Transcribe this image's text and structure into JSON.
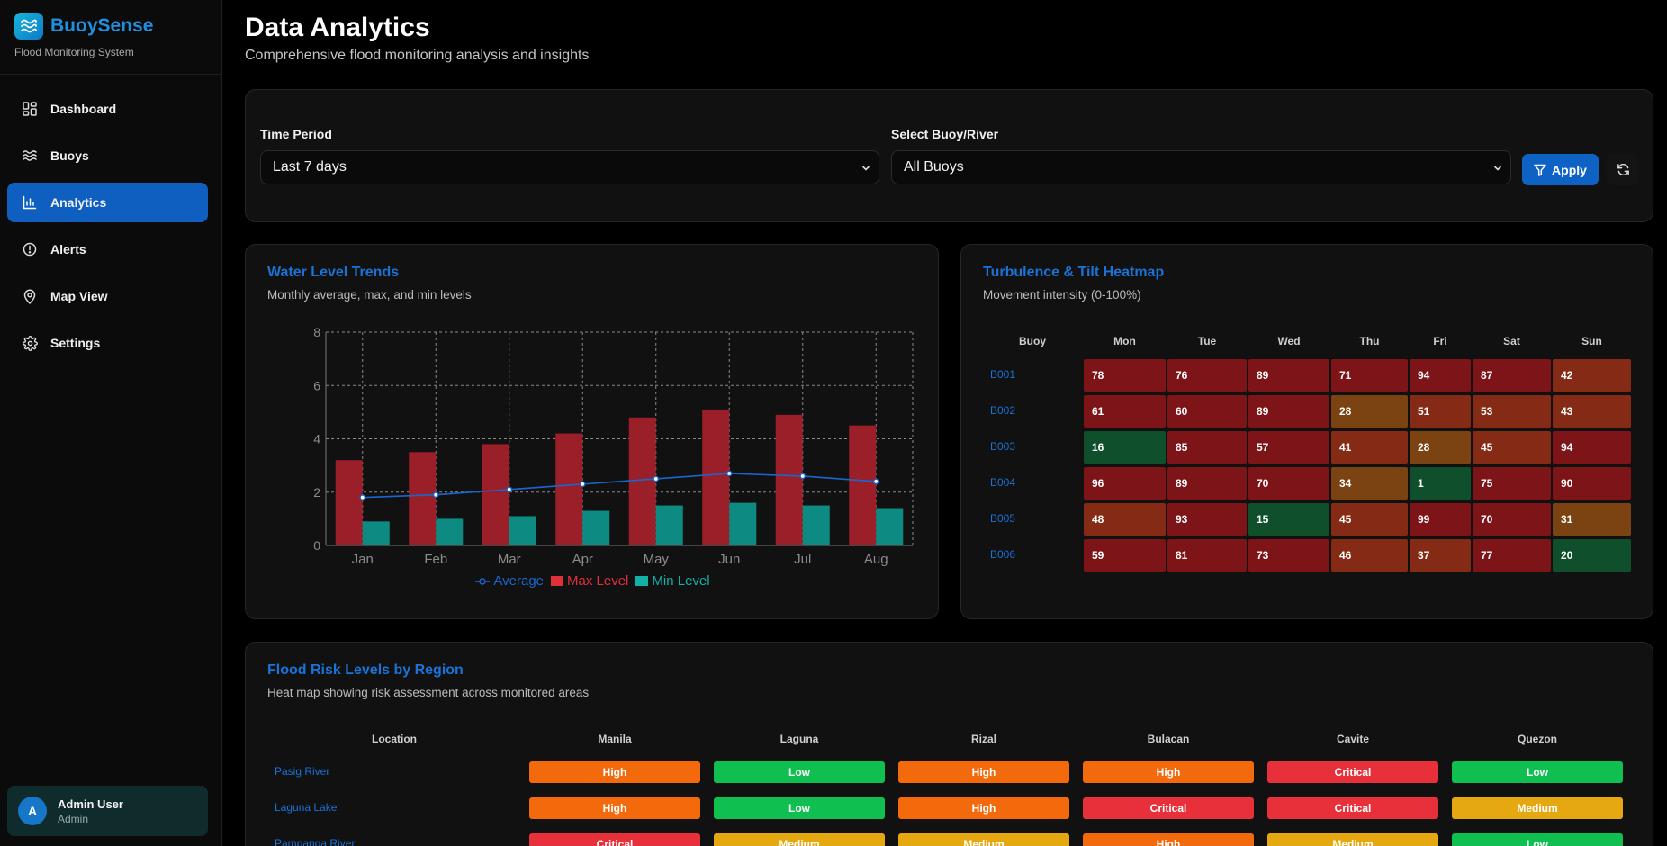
{
  "app": {
    "name": "BuoySense",
    "subtitle": "Flood Monitoring System"
  },
  "sidebar": {
    "items": [
      {
        "label": "Dashboard",
        "icon": "dashboard-icon",
        "active": false
      },
      {
        "label": "Buoys",
        "icon": "waves-icon",
        "active": false
      },
      {
        "label": "Analytics",
        "icon": "bar-chart-icon",
        "active": true
      },
      {
        "label": "Alerts",
        "icon": "alert-circle-icon",
        "active": false
      },
      {
        "label": "Map View",
        "icon": "map-pin-icon",
        "active": false
      },
      {
        "label": "Settings",
        "icon": "gear-icon",
        "active": false
      }
    ],
    "user": {
      "initial": "A",
      "name": "Admin User",
      "role": "Admin"
    }
  },
  "header": {
    "title": "Data Analytics",
    "subtitle": "Comprehensive flood monitoring analysis and insights"
  },
  "filters": {
    "time_label": "Time Period",
    "time_value": "Last 7 days",
    "buoy_label": "Select Buoy/River",
    "buoy_value": "All Buoys",
    "apply_label": "Apply"
  },
  "water_chart": {
    "title": "Water Level Trends",
    "subtitle": "Monthly average, max, and min levels",
    "chart_data": {
      "type": "bar",
      "categories": [
        "Jan",
        "Feb",
        "Mar",
        "Apr",
        "May",
        "Jun",
        "Jul",
        "Aug"
      ],
      "series": [
        {
          "name": "Average",
          "kind": "line",
          "color": "#1a66d0",
          "values": [
            1.8,
            1.9,
            2.1,
            2.3,
            2.5,
            2.7,
            2.6,
            2.4
          ]
        },
        {
          "name": "Max Level",
          "kind": "bar",
          "color": "#9b1f28",
          "values": [
            3.2,
            3.5,
            3.8,
            4.2,
            4.8,
            5.1,
            4.9,
            4.5
          ]
        },
        {
          "name": "Min Level",
          "kind": "bar",
          "color": "#0d8a82",
          "values": [
            0.9,
            1.0,
            1.1,
            1.3,
            1.5,
            1.6,
            1.5,
            1.4
          ]
        }
      ],
      "yticks": [
        "0",
        "2",
        "4",
        "6",
        "8"
      ],
      "ylim": [
        0,
        8
      ],
      "grid": true,
      "legend": "bottom"
    }
  },
  "heatmap": {
    "title": "Turbulence & Tilt Heatmap",
    "subtitle": "Movement intensity (0-100%)",
    "columns": [
      "Buoy",
      "Mon",
      "Tue",
      "Wed",
      "Thu",
      "Fri",
      "Sat",
      "Sun"
    ],
    "rows": [
      {
        "buoy": "B001",
        "values": [
          "78",
          "76",
          "89",
          "71",
          "94",
          "87",
          "42"
        ]
      },
      {
        "buoy": "B002",
        "values": [
          "61",
          "60",
          "89",
          "28",
          "51",
          "53",
          "43"
        ]
      },
      {
        "buoy": "B003",
        "values": [
          "16",
          "85",
          "57",
          "41",
          "28",
          "45",
          "94"
        ]
      },
      {
        "buoy": "B004",
        "values": [
          "96",
          "89",
          "70",
          "34",
          "1",
          "75",
          "90"
        ]
      },
      {
        "buoy": "B005",
        "values": [
          "48",
          "93",
          "15",
          "45",
          "99",
          "70",
          "31"
        ]
      },
      {
        "buoy": "B006",
        "values": [
          "59",
          "81",
          "73",
          "46",
          "37",
          "77",
          "20"
        ]
      }
    ],
    "colors": {
      "high": "#7c1418",
      "medium_high": "#852a15",
      "medium": "#7a4311",
      "low": "#0f4f2c"
    }
  },
  "risk": {
    "title": "Flood Risk Levels by Region",
    "subtitle": "Heat map showing risk assessment across monitored areas",
    "columns": [
      "Location",
      "Manila",
      "Laguna",
      "Rizal",
      "Bulacan",
      "Cavite",
      "Quezon"
    ],
    "rows": [
      {
        "location": "Pasig River",
        "levels": [
          "High",
          "Low",
          "High",
          "High",
          "Critical",
          "Low"
        ]
      },
      {
        "location": "Laguna Lake",
        "levels": [
          "High",
          "Low",
          "High",
          "Critical",
          "Critical",
          "Medium"
        ]
      },
      {
        "location": "Pampanga River",
        "levels": [
          "Critical",
          "Medium",
          "Medium",
          "High",
          "Medium",
          "Low"
        ]
      }
    ],
    "colors": {
      "Critical": "#e8303a",
      "High": "#f26a0c",
      "Medium": "#e6a810",
      "Low": "#0fbf4f"
    }
  }
}
